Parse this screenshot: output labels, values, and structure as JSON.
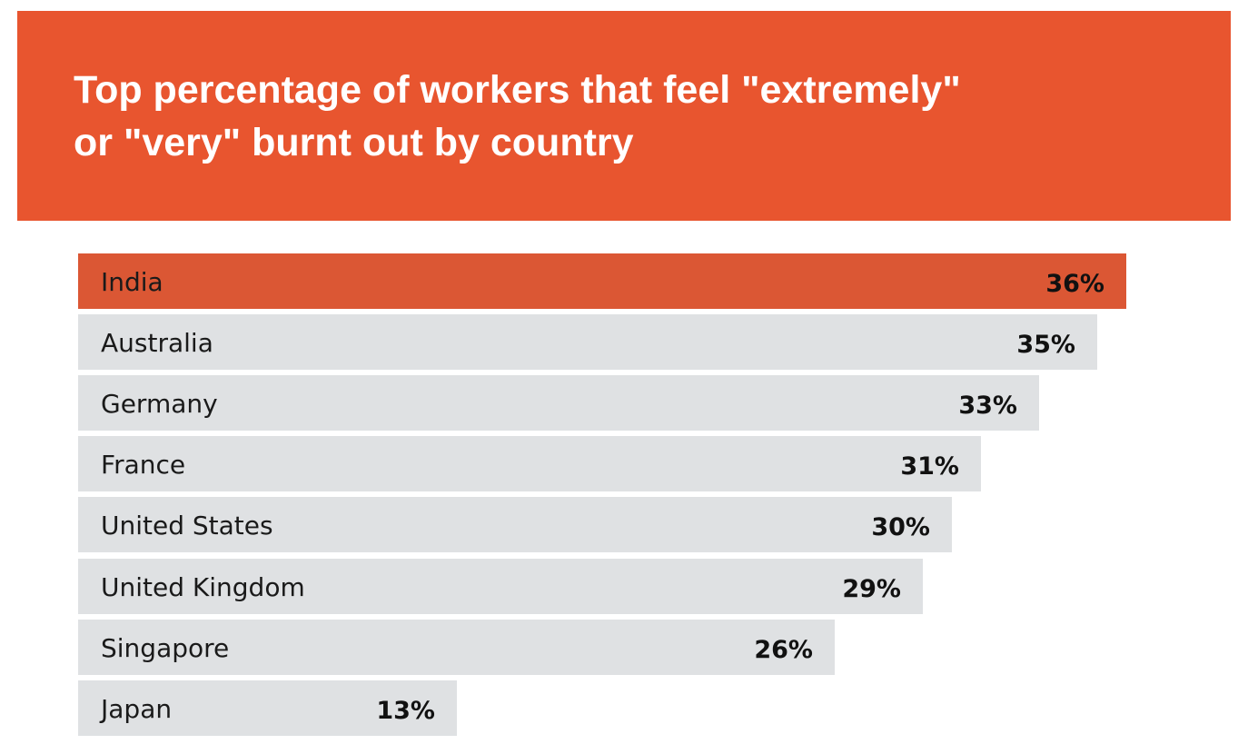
{
  "header": {
    "title_line1": "Top percentage of workers that feel \"extremely\"",
    "title_line2": "or \"very\" burnt out by country"
  },
  "colors": {
    "header_bg": "#e8552f",
    "highlight_bar": "#db5734",
    "bar": "#dfe1e3"
  },
  "chart_data": {
    "type": "bar",
    "orientation": "horizontal",
    "title": "Top percentage of workers that feel \"extremely\" or \"very\" burnt out by country",
    "categories": [
      "India",
      "Australia",
      "Germany",
      "France",
      "United States",
      "United Kingdom",
      "Singapore",
      "Japan"
    ],
    "values": [
      36,
      35,
      33,
      31,
      30,
      29,
      26,
      13
    ],
    "value_labels": [
      "36%",
      "35%",
      "33%",
      "31%",
      "30%",
      "29%",
      "26%",
      "13%"
    ],
    "highlight": "India",
    "unit": "%",
    "grid": false,
    "legend": "none"
  }
}
